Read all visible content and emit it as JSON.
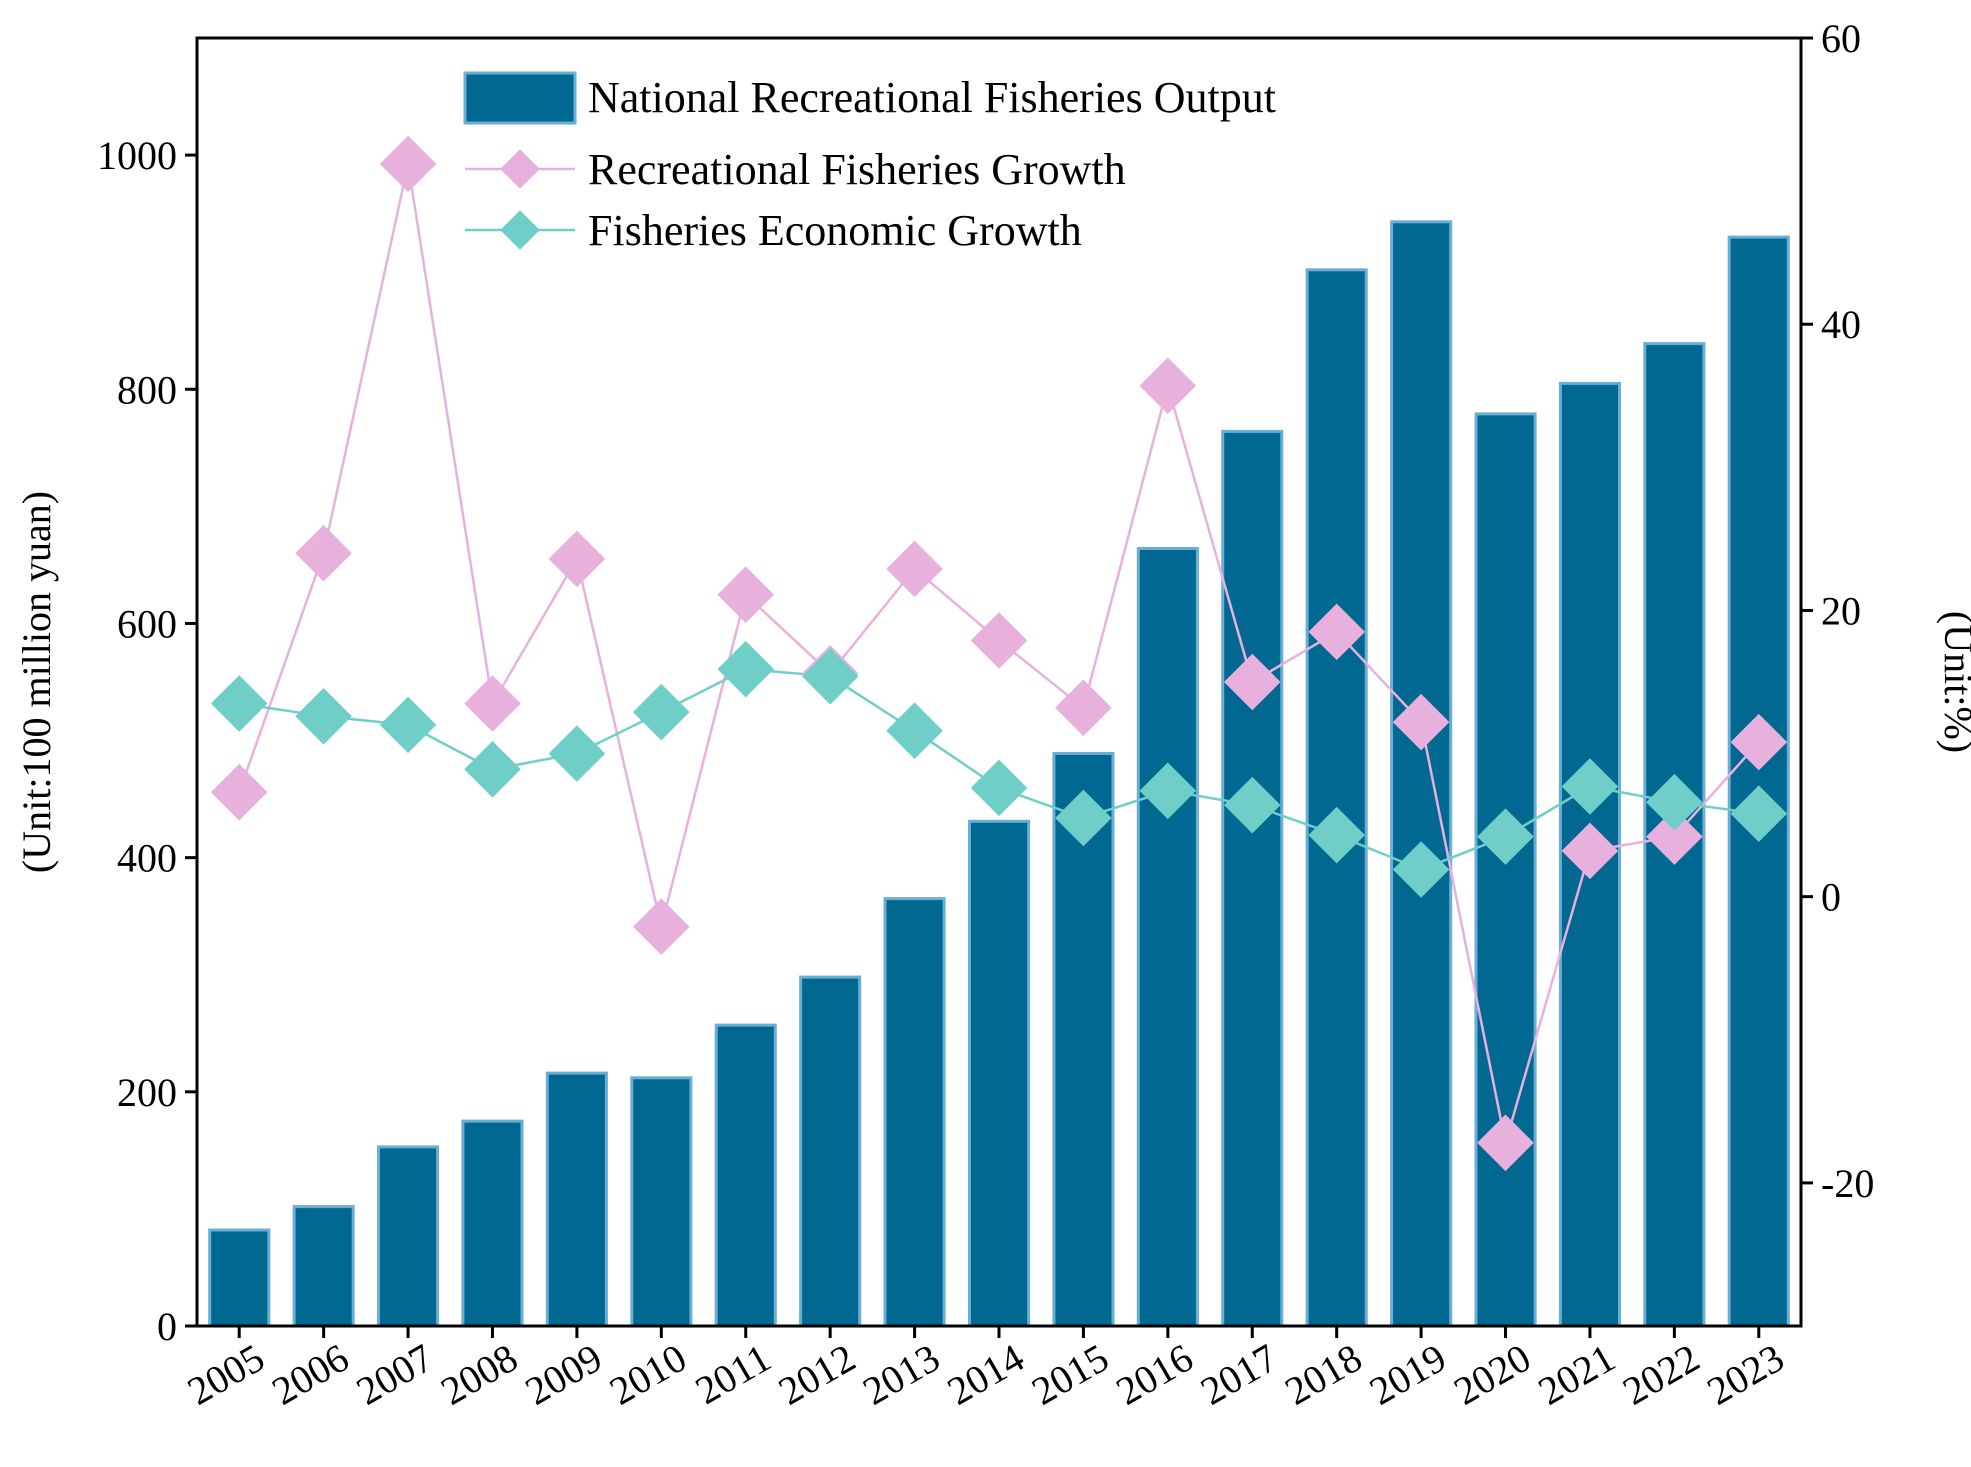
{
  "chart_data": {
    "type": "bar+line",
    "categories": [
      "2005",
      "2006",
      "2007",
      "2008",
      "2009",
      "2010",
      "2011",
      "2012",
      "2013",
      "2014",
      "2015",
      "2016",
      "2017",
      "2018",
      "2019",
      "2020",
      "2021",
      "2022",
      "2023"
    ],
    "bar_series": {
      "name": "National Recreational Fisheries Output",
      "axis": "left",
      "values": [
        82,
        102,
        153,
        175,
        216,
        212,
        257,
        298,
        365,
        431,
        489,
        664,
        764,
        902,
        943,
        779,
        805,
        839,
        930
      ]
    },
    "line_series": [
      {
        "name": "Recreational Fisheries Growth",
        "axis": "right",
        "values": [
          7.3,
          24.0,
          51.2,
          13.5,
          23.6,
          -2.1,
          21.1,
          15.6,
          22.9,
          17.9,
          13.2,
          35.7,
          15.0,
          18.5,
          12.2,
          -17.2,
          3.2,
          4.2,
          10.8
        ]
      },
      {
        "name": "Fisheries Economic Growth",
        "axis": "right",
        "values": [
          13.5,
          12.6,
          12.0,
          8.9,
          10.0,
          12.9,
          15.9,
          15.4,
          11.6,
          7.6,
          5.5,
          7.4,
          6.4,
          4.3,
          1.9,
          4.2,
          7.7,
          6.6,
          5.8
        ]
      }
    ],
    "y_left": {
      "label": "(Unit:100 million yuan)",
      "lim": [
        0,
        1100
      ],
      "ticks": [
        "0",
        "200",
        "400",
        "600",
        "800",
        "1000"
      ],
      "tick_values": [
        0,
        200,
        400,
        600,
        800,
        1000
      ]
    },
    "y_right": {
      "label": "(Unit:%)",
      "lim": [
        -30,
        60
      ],
      "ticks": [
        "-20",
        "0",
        "20",
        "40",
        "60"
      ],
      "tick_values": [
        -20,
        0,
        20,
        40,
        60
      ]
    },
    "legend_position": "top-center",
    "colors": {
      "bar_fill": "#016891",
      "bar_edge": "#6aaed6",
      "line_recreational": "#e8b1dd",
      "line_economic": "#6fcfc8",
      "axis": "#000000"
    }
  }
}
